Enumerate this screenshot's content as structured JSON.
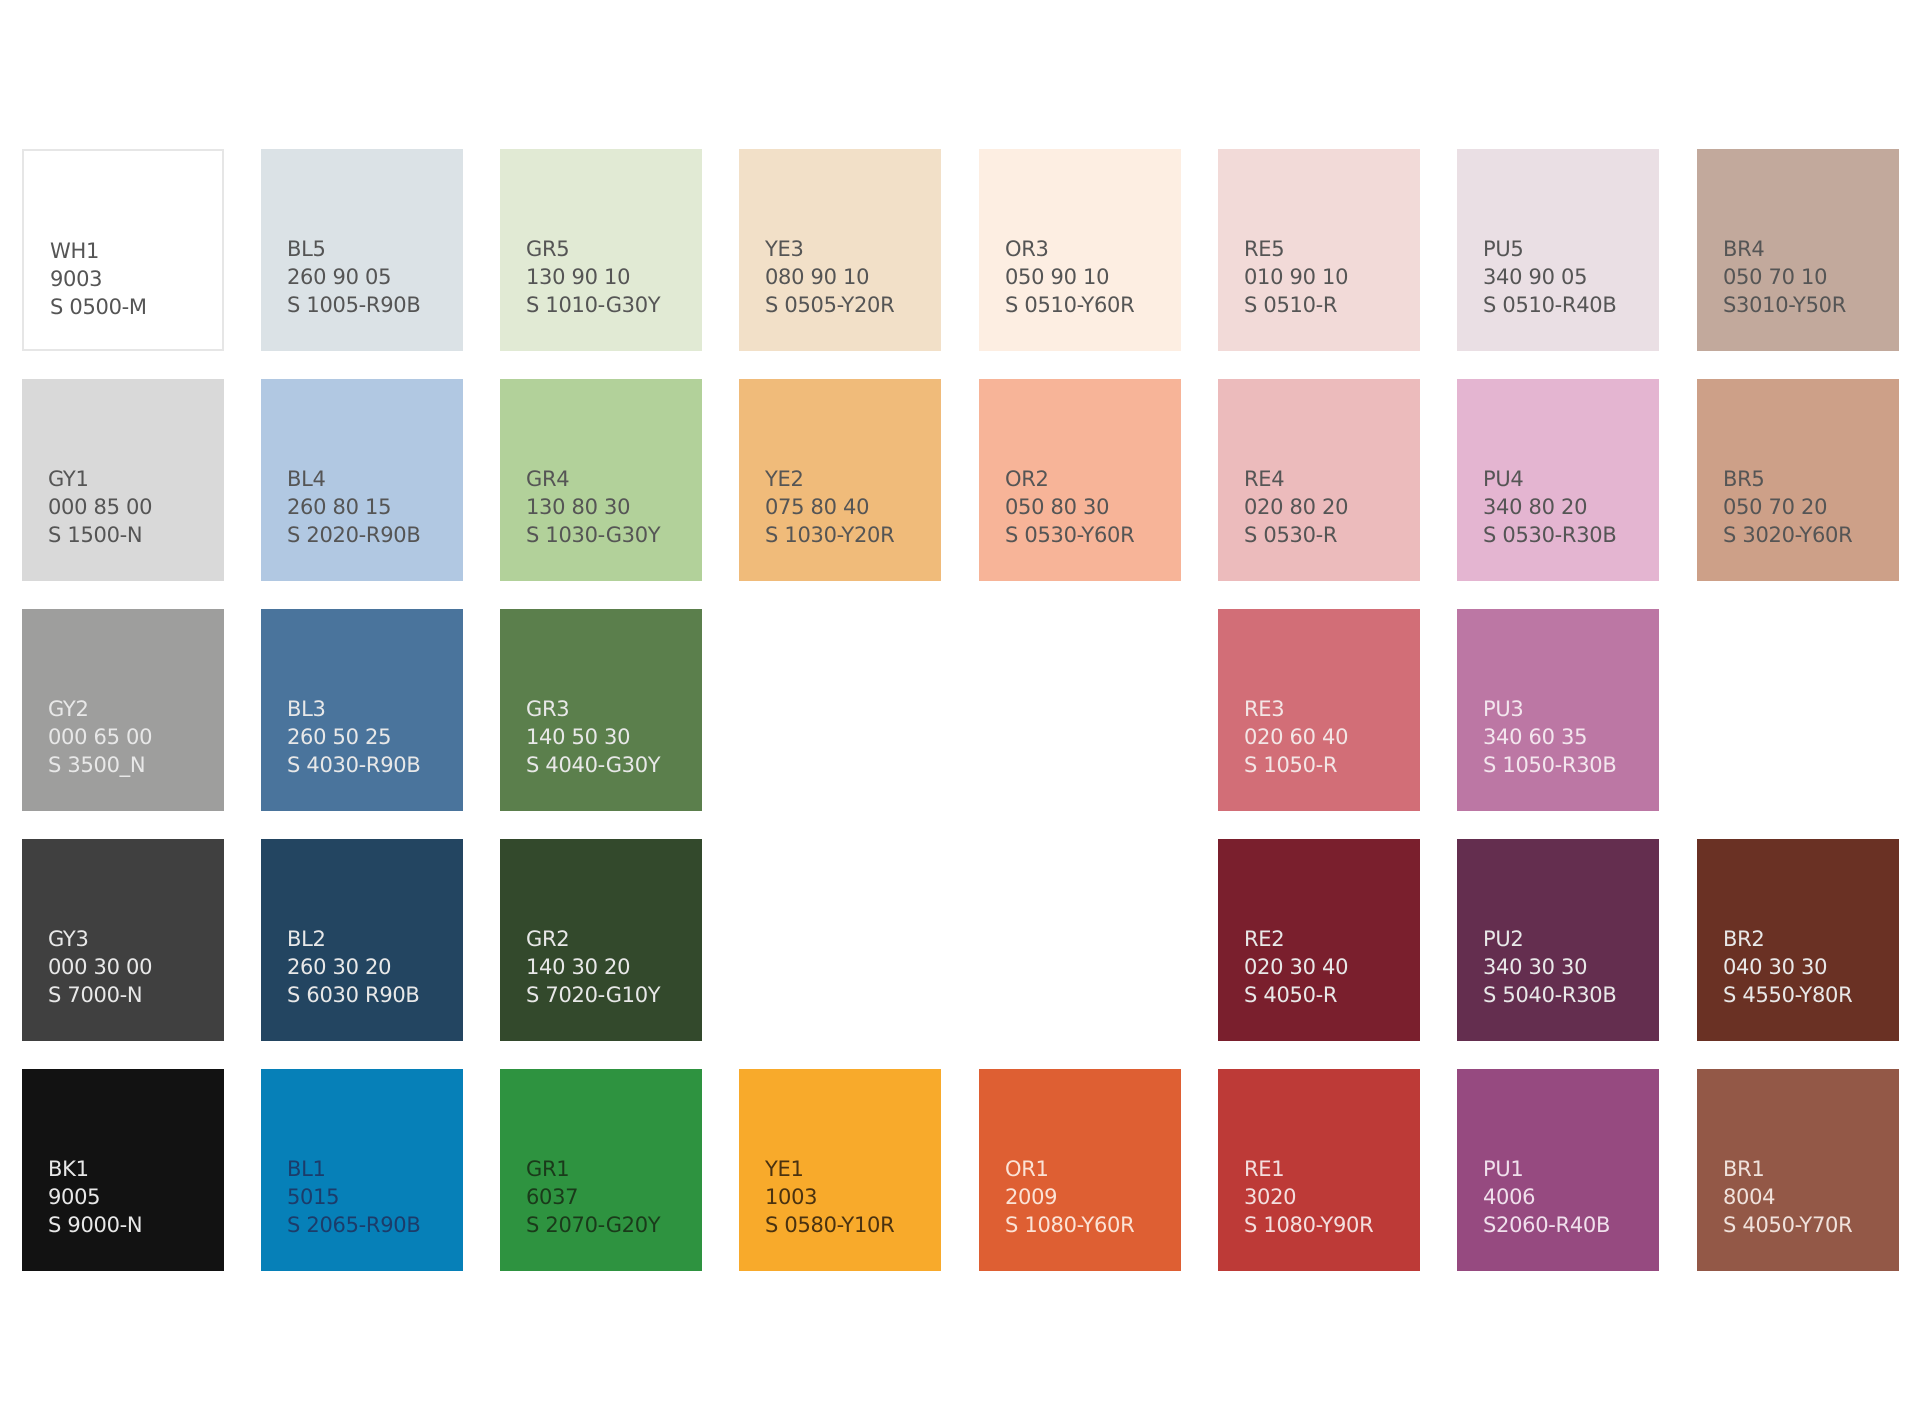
{
  "swatches": [
    {
      "code": "WH1",
      "ref": "9003",
      "ncs": "S 0500-M",
      "color": "#ffffff",
      "text_color": "#555555"
    },
    {
      "code": "BL5",
      "ref": "260 90 05",
      "ncs": "S 1005-R90B",
      "color": "#dbe2e6",
      "text_color": "#555555"
    },
    {
      "code": "GR5",
      "ref": "130 90 10",
      "ncs": "S 1010-G30Y",
      "color": "#e1ead4",
      "text_color": "#555555"
    },
    {
      "code": "YE3",
      "ref": "080 90 10",
      "ncs": "S 0505-Y20R",
      "color": "#f2e0c8",
      "text_color": "#555555"
    },
    {
      "code": "OR3",
      "ref": "050 90 10",
      "ncs": "S 0510-Y60R",
      "color": "#fdeee2",
      "text_color": "#555555"
    },
    {
      "code": "RE5",
      "ref": "010 90 10",
      "ncs": "S 0510-R",
      "color": "#f2dad8",
      "text_color": "#555555"
    },
    {
      "code": "PU5",
      "ref": "340 90 05",
      "ncs": "S 0510-R40B",
      "color": "#eadfe4",
      "text_color": "#555555"
    },
    {
      "code": "BR4",
      "ref": "050 70 10",
      "ncs": "S3010-Y50R",
      "color": "#c2a99c",
      "text_color": "#555555"
    },
    {
      "code": "GY1",
      "ref": "000 85 00",
      "ncs": "S 1500-N",
      "color": "#d9d9d9",
      "text_color": "#555555"
    },
    {
      "code": "BL4",
      "ref": "260 80 15",
      "ncs": "S 2020-R90B",
      "color": "#b1c8e2",
      "text_color": "#555555"
    },
    {
      "code": "GR4",
      "ref": "130 80 30",
      "ncs": "S 1030-G30Y",
      "color": "#b2d19a",
      "text_color": "#555555"
    },
    {
      "code": "YE2",
      "ref": "075 80 40",
      "ncs": "S 1030-Y20R",
      "color": "#f0bb7a",
      "text_color": "#555555"
    },
    {
      "code": "OR2",
      "ref": "050 80 30",
      "ncs": "S 0530-Y60R",
      "color": "#f7b498",
      "text_color": "#555555"
    },
    {
      "code": "RE4",
      "ref": "020 80 20",
      "ncs": "S 0530-R",
      "color": "#ecbbbc",
      "text_color": "#555555"
    },
    {
      "code": "PU4",
      "ref": "340 80 20",
      "ncs": "S 0530-R30B",
      "color": "#e4b5d1",
      "text_color": "#555555"
    },
    {
      "code": "BR5",
      "ref": "050 70 20",
      "ncs": "S 3020-Y60R",
      "color": "#cda088",
      "text_color": "#555555"
    },
    {
      "code": "GY2",
      "ref": "000 65 00",
      "ncs": "S 3500_N",
      "color": "#9e9e9d",
      "text_color": "#e8e8e8"
    },
    {
      "code": "BL3",
      "ref": "260 50 25",
      "ncs": "S 4030-R90B",
      "color": "#4a749c",
      "text_color": "#e8e8e8"
    },
    {
      "code": "GR3",
      "ref": "140 50 30",
      "ncs": "S 4040-G30Y",
      "color": "#5b7f4c",
      "text_color": "#e8e8e8"
    },
    {
      "code": "RE3",
      "ref": "020 60 40",
      "ncs": "S 1050-R",
      "color": "#d26e77",
      "text_color": "#f3e6e6"
    },
    {
      "code": "PU3",
      "ref": "340 60 35",
      "ncs": "S 1050-R30B",
      "color": "#bc77a4",
      "text_color": "#f3e6ee"
    },
    {
      "code": "GY3",
      "ref": "000 30 00",
      "ncs": "S 7000-N",
      "color": "#404040",
      "text_color": "#e8e8e8"
    },
    {
      "code": "BL2",
      "ref": "260 30 20",
      "ncs": "S 6030 R90B",
      "color": "#234561",
      "text_color": "#e8e8e8"
    },
    {
      "code": "GR2",
      "ref": "140 30 20",
      "ncs": "S 7020-G10Y",
      "color": "#33492c",
      "text_color": "#e8e8e8"
    },
    {
      "code": "RE2",
      "ref": "020 30 40",
      "ncs": "S 4050-R",
      "color": "#7a1f2d",
      "text_color": "#e8e8e8"
    },
    {
      "code": "PU2",
      "ref": "340 30 30",
      "ncs": "S 5040-R30B",
      "color": "#642e4f",
      "text_color": "#e8e8e8"
    },
    {
      "code": "BR2",
      "ref": "040 30 30",
      "ncs": "S 4550-Y80R",
      "color": "#6a3124",
      "text_color": "#e8e8e8"
    },
    {
      "code": "BK1",
      "ref": "9005",
      "ncs": "S 9000-N",
      "color": "#121212",
      "text_color": "#e8e8e8"
    },
    {
      "code": "BL1",
      "ref": "5015",
      "ncs": "S 2065-R90B",
      "color": "#0680b8",
      "text_color": "#1c3c6a"
    },
    {
      "code": "GR1",
      "ref": "6037",
      "ncs": "S 2070-G20Y",
      "color": "#2e9340",
      "text_color": "#1a3a1a"
    },
    {
      "code": "YE1",
      "ref": "1003",
      "ncs": "S 0580-Y10R",
      "color": "#f8aa2b",
      "text_color": "#4a3210"
    },
    {
      "code": "OR1",
      "ref": "2009",
      "ncs": "S 1080-Y60R",
      "color": "#de5f33",
      "text_color": "#fbe3d6"
    },
    {
      "code": "RE1",
      "ref": "3020",
      "ncs": "S 1080-Y90R",
      "color": "#bd3a37",
      "text_color": "#f3dede"
    },
    {
      "code": "PU1",
      "ref": "4006",
      "ncs": "S2060-R40B",
      "color": "#964a80",
      "text_color": "#f0e0ec"
    },
    {
      "code": "BR1",
      "ref": "8004",
      "ncs": "S 4050-Y70R",
      "color": "#935847",
      "text_color": "#f0e2dc"
    }
  ]
}
